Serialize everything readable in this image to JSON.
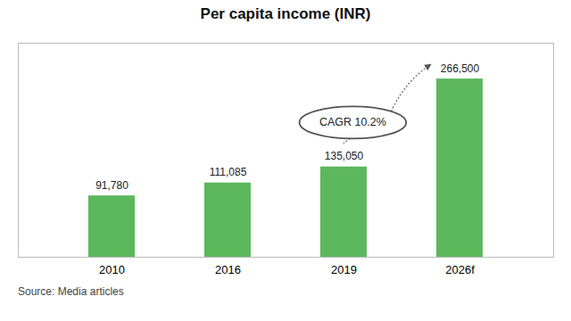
{
  "chart_data": {
    "type": "bar",
    "title": "Per capita income (INR)",
    "categories": [
      "2010",
      "2016",
      "2019",
      "2026f"
    ],
    "values": [
      91780,
      111085,
      135050,
      266500
    ],
    "value_labels": [
      "91,780",
      "111,085",
      "135,050",
      "266,500"
    ],
    "color": "#5cb85c",
    "ylim": [
      0,
      320000
    ],
    "data_labels": true,
    "tick_labels": "x",
    "annotation": "CAGR 10.2%",
    "caption": "Source: Media articles"
  }
}
